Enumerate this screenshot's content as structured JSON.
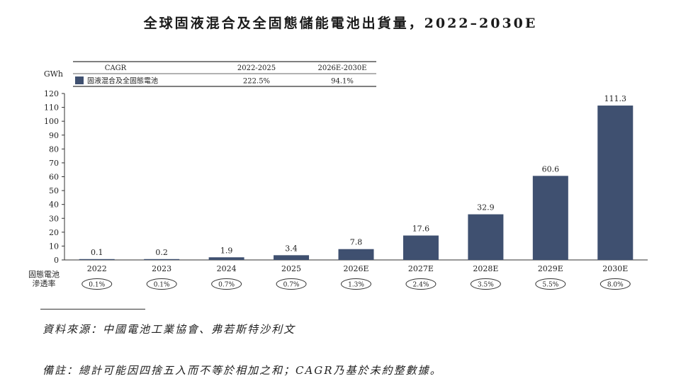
{
  "title": "全球固液混合及全固態儲能電池出貨量，2022–2030E",
  "chart_data": {
    "type": "bar",
    "ylabel": "GWh",
    "ylim": [
      0,
      120
    ],
    "yticks": [
      0,
      10,
      20,
      30,
      40,
      50,
      60,
      70,
      80,
      90,
      100,
      110,
      120
    ],
    "categories": [
      "2022",
      "2023",
      "2024",
      "2025",
      "2026E",
      "2027E",
      "2028E",
      "2029E",
      "2030E"
    ],
    "values": [
      0.1,
      0.2,
      1.9,
      3.4,
      7.8,
      17.6,
      32.9,
      60.6,
      111.3
    ],
    "value_labels": [
      "0.1",
      "0.2",
      "1.9",
      "3.4",
      "7.8",
      "17.6",
      "32.9",
      "60.6",
      "111.3"
    ],
    "color": "#3f5070",
    "series_name": "固液混合及全固態電池",
    "cagr_table": {
      "header": [
        "CAGR",
        "2022-2025",
        "2026E-2030E"
      ],
      "row": [
        "固液混合及全固態電池",
        "222.5%",
        "94.1%"
      ]
    },
    "penetration": {
      "label_line1": "固態電池",
      "label_line2": "滲透率",
      "values": [
        "0.1%",
        "0.1%",
        "0.7%",
        "0.7%",
        "1.3%",
        "2.4%",
        "3.5%",
        "5.5%",
        "8.0%"
      ]
    }
  },
  "source": "資料來源：中國電池工業協會、弗若斯特沙利文",
  "note": "備註：總計可能因四捨五入而不等於相加之和；CAGR乃基於未約整數據。"
}
